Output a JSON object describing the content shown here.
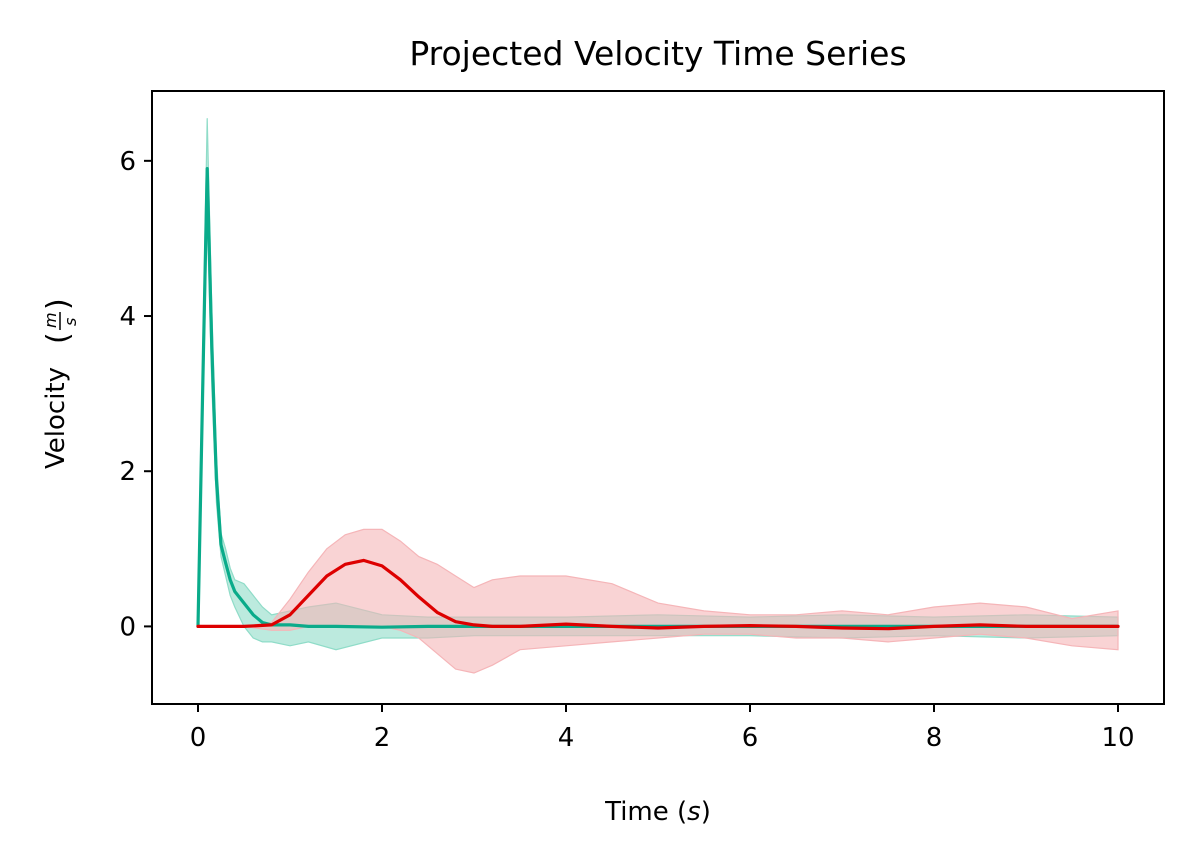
{
  "chart_data": {
    "type": "line",
    "title": "Projected Velocity Time Series",
    "xlabel": "Time (s)",
    "ylabel": "Velocity",
    "ylabel_unit_numerator": "m",
    "ylabel_unit_denominator": "s",
    "xlim": [
      -0.5,
      10.5
    ],
    "ylim": [
      -1.0,
      6.9
    ],
    "xticks": [
      0,
      2,
      4,
      6,
      8,
      10
    ],
    "yticks": [
      0,
      2,
      4,
      6
    ],
    "grid": false,
    "legend": "none",
    "series": [
      {
        "color": "#0aab8a",
        "band_color": "#8fdcc8",
        "x": [
          0,
          0.05,
          0.1,
          0.15,
          0.2,
          0.25,
          0.3,
          0.35,
          0.4,
          0.5,
          0.6,
          0.7,
          0.8,
          1.0,
          1.2,
          1.5,
          2.0,
          2.5,
          3.0,
          4.0,
          5.0,
          6.0,
          7.0,
          8.0,
          9.0,
          10.0
        ],
        "values": [
          0.0,
          3.0,
          5.9,
          3.6,
          1.9,
          1.05,
          0.82,
          0.6,
          0.45,
          0.3,
          0.15,
          0.05,
          0.02,
          0.02,
          0.0,
          0.0,
          -0.01,
          0.0,
          0.0,
          0.0,
          0.0,
          0.0,
          0.0,
          0.0,
          0.0,
          0.0
        ],
        "upper": [
          0.0,
          3.4,
          6.55,
          4.1,
          2.2,
          1.2,
          1.0,
          0.75,
          0.6,
          0.55,
          0.4,
          0.25,
          0.15,
          0.2,
          0.25,
          0.3,
          0.15,
          0.12,
          0.12,
          0.12,
          0.15,
          0.12,
          0.15,
          0.12,
          0.15,
          0.12
        ],
        "lower": [
          0.0,
          2.6,
          5.3,
          3.1,
          1.6,
          0.9,
          0.65,
          0.4,
          0.25,
          0.0,
          -0.15,
          -0.2,
          -0.2,
          -0.25,
          -0.2,
          -0.3,
          -0.15,
          -0.15,
          -0.12,
          -0.12,
          -0.12,
          -0.12,
          -0.15,
          -0.12,
          -0.15,
          -0.12
        ]
      },
      {
        "color": "#dd0000",
        "band_color": "#f5b5b8",
        "x": [
          0,
          0.5,
          0.8,
          1.0,
          1.2,
          1.4,
          1.6,
          1.8,
          2.0,
          2.2,
          2.4,
          2.6,
          2.8,
          3.0,
          3.2,
          3.5,
          4.0,
          4.5,
          5.0,
          5.5,
          6.0,
          6.5,
          7.0,
          7.5,
          8.0,
          8.5,
          9.0,
          9.5,
          10.0
        ],
        "values": [
          0.0,
          0.0,
          0.02,
          0.15,
          0.4,
          0.65,
          0.8,
          0.85,
          0.78,
          0.6,
          0.38,
          0.18,
          0.06,
          0.02,
          0.0,
          0.0,
          0.03,
          0.0,
          -0.02,
          0.0,
          0.01,
          0.0,
          -0.02,
          -0.03,
          0.0,
          0.02,
          0.0,
          0.0,
          0.0
        ],
        "upper": [
          0.0,
          0.0,
          0.05,
          0.35,
          0.7,
          1.0,
          1.18,
          1.25,
          1.25,
          1.1,
          0.9,
          0.8,
          0.65,
          0.5,
          0.6,
          0.65,
          0.65,
          0.55,
          0.3,
          0.2,
          0.15,
          0.15,
          0.2,
          0.15,
          0.25,
          0.3,
          0.25,
          0.1,
          0.2
        ],
        "lower": [
          0.0,
          0.0,
          -0.05,
          -0.05,
          0.0,
          0.0,
          0.0,
          0.0,
          0.0,
          -0.05,
          -0.15,
          -0.35,
          -0.55,
          -0.6,
          -0.5,
          -0.3,
          -0.25,
          -0.2,
          -0.15,
          -0.1,
          -0.1,
          -0.15,
          -0.15,
          -0.2,
          -0.15,
          -0.1,
          -0.15,
          -0.25,
          -0.3
        ]
      }
    ]
  }
}
